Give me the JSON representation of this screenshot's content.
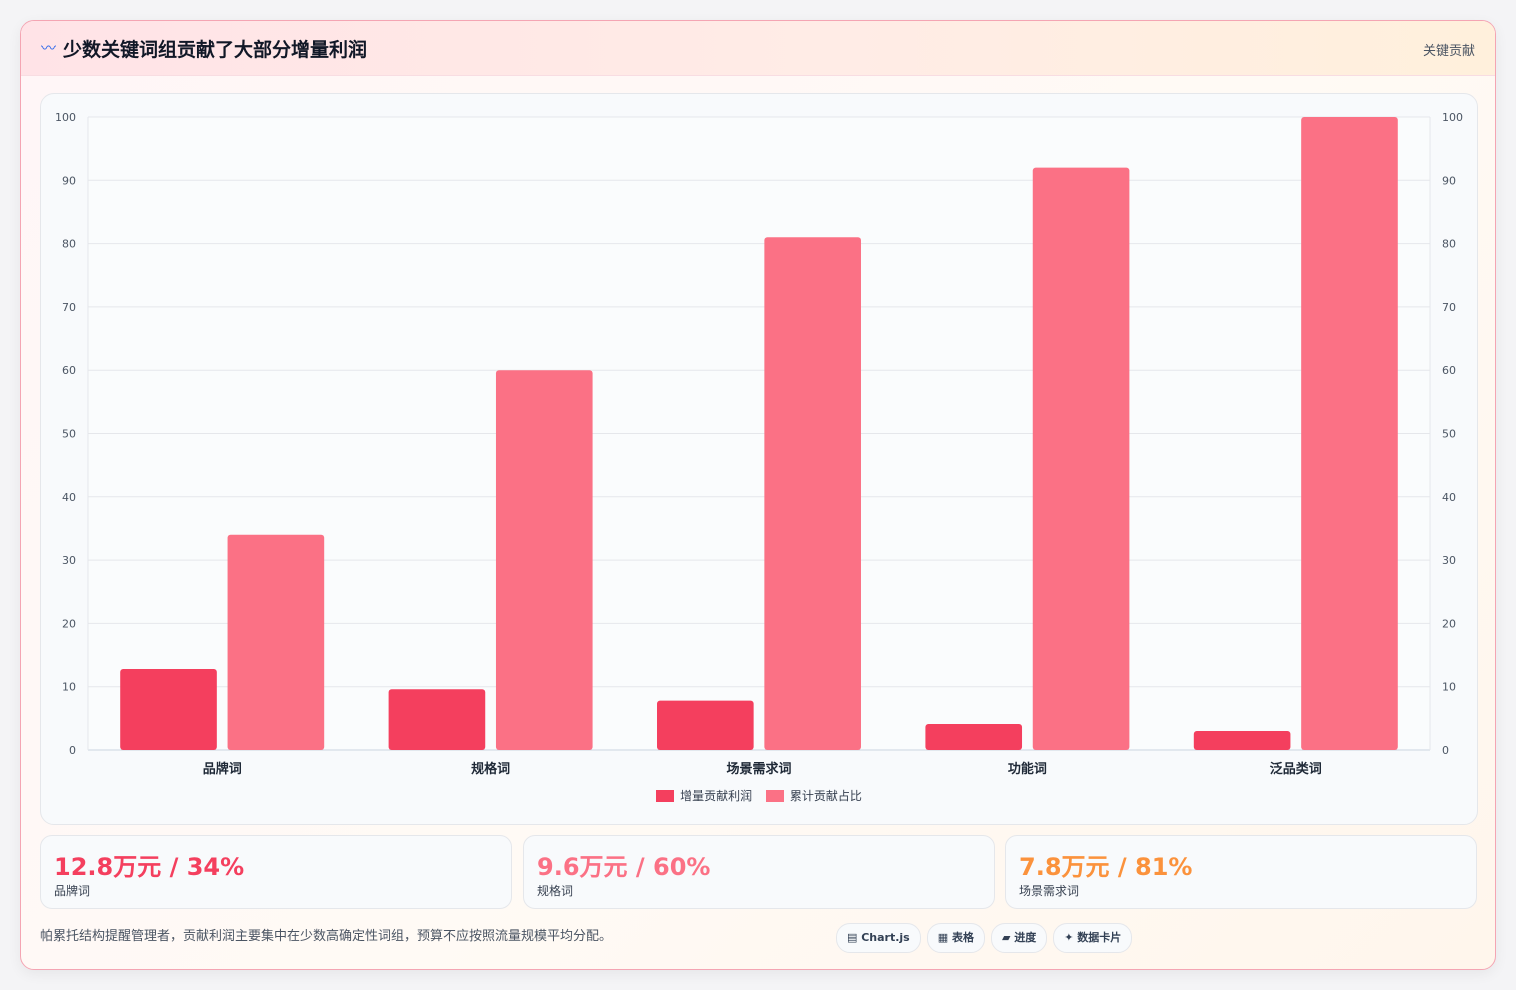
{
  "header": {
    "icon": "〰",
    "title": "少数关键词组贡献了大部分增量利润",
    "tag": "关键贡献"
  },
  "chart_data": {
    "type": "bar",
    "categories": [
      "品牌词",
      "规格词",
      "场景需求词",
      "功能词",
      "泛品类词"
    ],
    "series": [
      {
        "name": "增量贡献利润",
        "values": [
          12.8,
          9.6,
          7.8,
          4.1,
          3.0
        ],
        "color": "#f43f5e"
      },
      {
        "name": "累计贡献占比",
        "values": [
          34,
          60,
          81,
          92,
          100
        ],
        "color": "#fb7185"
      }
    ],
    "ylim": [
      0,
      100
    ],
    "yticks": [
      0,
      10,
      20,
      30,
      40,
      50,
      60,
      70,
      80,
      90,
      100
    ],
    "legend_position": "bottom",
    "grid": true
  },
  "stats": [
    {
      "value": "12.8万元 / 34%",
      "label": "品牌词",
      "color": "#f43f5e"
    },
    {
      "value": "9.6万元 / 60%",
      "label": "规格词",
      "color": "#fb7185"
    },
    {
      "value": "7.8万元 / 81%",
      "label": "场景需求词",
      "color": "#fb923c"
    }
  ],
  "footer": {
    "note": "帕累托结构提醒管理者，贡献利润主要集中在少数高确定性词组，预算不应按照流量规模平均分配。",
    "pills": [
      "▤ Chart.js",
      "▦ 表格",
      "▰ 进度",
      "✦ 数据卡片"
    ]
  }
}
